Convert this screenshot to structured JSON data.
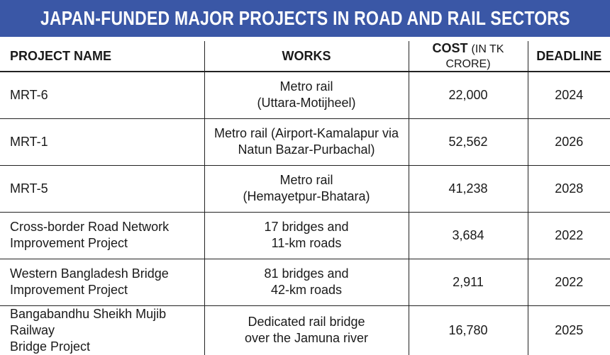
{
  "title": "JAPAN-FUNDED MAJOR PROJECTS IN ROAD AND RAIL SECTORS",
  "headers": {
    "project_name": "PROJECT NAME",
    "works": "WORKS",
    "cost": "COST",
    "cost_unit": "(IN TK CRORE)",
    "deadline": "DEADLINE"
  },
  "rows": [
    {
      "name": [
        "MRT-6",
        ""
      ],
      "works": [
        "Metro rail",
        "(Uttara-Motijheel)"
      ],
      "cost": "22,000",
      "deadline": "2024"
    },
    {
      "name": [
        "MRT-1",
        ""
      ],
      "works": [
        "Metro rail (Airport-Kamalapur via",
        "Natun Bazar-Purbachal)"
      ],
      "cost": "52,562",
      "deadline": "2026"
    },
    {
      "name": [
        "MRT-5",
        ""
      ],
      "works": [
        "Metro rail",
        "(Hemayetpur-Bhatara)"
      ],
      "cost": "41,238",
      "deadline": "2028"
    },
    {
      "name": [
        "Cross-border Road Network",
        "Improvement Project"
      ],
      "works": [
        "17 bridges and",
        "11-km roads"
      ],
      "cost": "3,684",
      "deadline": "2022"
    },
    {
      "name": [
        "Western Bangladesh Bridge",
        "Improvement Project"
      ],
      "works": [
        "81 bridges  and",
        "42-km roads"
      ],
      "cost": "2,911",
      "deadline": "2022"
    },
    {
      "name": [
        "Bangabandhu Sheikh Mujib Railway",
        "Bridge Project"
      ],
      "works": [
        "Dedicated rail bridge",
        "over the Jamuna river"
      ],
      "cost": "16,780",
      "deadline": "2025"
    }
  ],
  "colors": {
    "banner": "#3a57a6",
    "banner_text": "#ffffff",
    "rules": "#222222"
  }
}
